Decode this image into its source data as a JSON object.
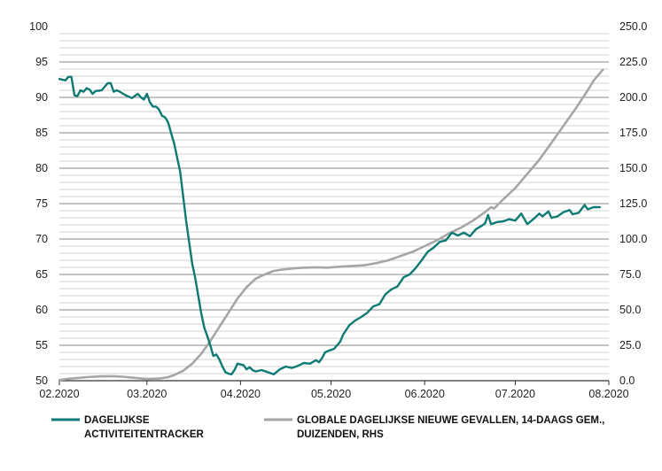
{
  "chart_data": {
    "type": "line",
    "x_ticks": [
      "02.2020",
      "03.2020",
      "04.2020",
      "05.2020",
      "06.2020",
      "07.2020",
      "08.2020"
    ],
    "y_left_ticks": [
      "100",
      "95",
      "90",
      "85",
      "80",
      "75",
      "70",
      "65",
      "60",
      "55",
      "50"
    ],
    "y_right_ticks": [
      "250.0",
      "225.0",
      "200.0",
      "175.0",
      "150.0",
      "125.0",
      "100.0",
      "75.0",
      "50.0",
      "25.0",
      "0.0"
    ],
    "ylim_left": [
      50,
      100
    ],
    "ylim_right": [
      0,
      250
    ],
    "xlim": [
      "2020-02-01",
      "2020-08-01"
    ],
    "grid": "horizontal",
    "legend_position": "bottom",
    "series": [
      {
        "name": "DAGELIJKSE ACTIVITEITENTRACKER",
        "axis": "left",
        "color": "#0d7a73",
        "points": [
          [
            "2020-02-01",
            92.6
          ],
          [
            "2020-02-03",
            92.4
          ],
          [
            "2020-02-04",
            92.9
          ],
          [
            "2020-02-05",
            92.9
          ],
          [
            "2020-02-06",
            90.3
          ],
          [
            "2020-02-07",
            90.2
          ],
          [
            "2020-02-08",
            91.0
          ],
          [
            "2020-02-09",
            90.8
          ],
          [
            "2020-02-10",
            91.3
          ],
          [
            "2020-02-11",
            91.1
          ],
          [
            "2020-02-12",
            90.5
          ],
          [
            "2020-02-13",
            90.9
          ],
          [
            "2020-02-15",
            91.0
          ],
          [
            "2020-02-17",
            92.0
          ],
          [
            "2020-02-18",
            92.0
          ],
          [
            "2020-02-19",
            90.8
          ],
          [
            "2020-02-20",
            91.0
          ],
          [
            "2020-02-21",
            90.8
          ],
          [
            "2020-02-23",
            90.3
          ],
          [
            "2020-02-25",
            89.9
          ],
          [
            "2020-02-26",
            90.2
          ],
          [
            "2020-02-27",
            90.5
          ],
          [
            "2020-02-28",
            90.0
          ],
          [
            "2020-02-29",
            89.7
          ],
          [
            "2020-03-01",
            90.5
          ],
          [
            "2020-03-02",
            89.3
          ],
          [
            "2020-03-03",
            88.7
          ],
          [
            "2020-03-04",
            88.7
          ],
          [
            "2020-03-05",
            88.3
          ],
          [
            "2020-03-06",
            87.4
          ],
          [
            "2020-03-07",
            87.2
          ],
          [
            "2020-03-08",
            86.5
          ],
          [
            "2020-03-09",
            85.0
          ],
          [
            "2020-03-10",
            83.5
          ],
          [
            "2020-03-11",
            81.5
          ],
          [
            "2020-03-12",
            79.5
          ],
          [
            "2020-03-13",
            76.0
          ],
          [
            "2020-03-14",
            72.5
          ],
          [
            "2020-03-15",
            69.5
          ],
          [
            "2020-03-16",
            66.5
          ],
          [
            "2020-03-17",
            64.5
          ],
          [
            "2020-03-18",
            62.0
          ],
          [
            "2020-03-19",
            59.5
          ],
          [
            "2020-03-20",
            57.5
          ],
          [
            "2020-03-21",
            56.3
          ],
          [
            "2020-03-22",
            55.0
          ],
          [
            "2020-03-23",
            53.5
          ],
          [
            "2020-03-24",
            53.7
          ],
          [
            "2020-03-25",
            53.0
          ],
          [
            "2020-03-26",
            52.0
          ],
          [
            "2020-03-27",
            51.2
          ],
          [
            "2020-03-28",
            51.0
          ],
          [
            "2020-03-29",
            50.9
          ],
          [
            "2020-03-30",
            51.5
          ],
          [
            "2020-03-31",
            52.4
          ],
          [
            "2020-04-02",
            52.2
          ],
          [
            "2020-04-03",
            51.6
          ],
          [
            "2020-04-04",
            51.9
          ],
          [
            "2020-04-05",
            51.5
          ],
          [
            "2020-04-06",
            51.3
          ],
          [
            "2020-04-08",
            51.5
          ],
          [
            "2020-04-10",
            51.2
          ],
          [
            "2020-04-12",
            50.9
          ],
          [
            "2020-04-14",
            51.6
          ],
          [
            "2020-04-16",
            52.0
          ],
          [
            "2020-04-18",
            51.8
          ],
          [
            "2020-04-20",
            52.1
          ],
          [
            "2020-04-22",
            52.5
          ],
          [
            "2020-04-24",
            52.4
          ],
          [
            "2020-04-26",
            52.9
          ],
          [
            "2020-04-27",
            52.6
          ],
          [
            "2020-04-28",
            53.2
          ],
          [
            "2020-04-29",
            54.0
          ],
          [
            "2020-04-30",
            54.2
          ],
          [
            "2020-05-02",
            54.5
          ],
          [
            "2020-05-04",
            55.5
          ],
          [
            "2020-05-05",
            56.5
          ],
          [
            "2020-05-07",
            57.8
          ],
          [
            "2020-05-09",
            58.5
          ],
          [
            "2020-05-11",
            59.0
          ],
          [
            "2020-05-13",
            59.6
          ],
          [
            "2020-05-15",
            60.5
          ],
          [
            "2020-05-17",
            60.8
          ],
          [
            "2020-05-19",
            62.2
          ],
          [
            "2020-05-21",
            62.9
          ],
          [
            "2020-05-23",
            63.3
          ],
          [
            "2020-05-25",
            64.6
          ],
          [
            "2020-05-27",
            65.0
          ],
          [
            "2020-05-29",
            65.9
          ],
          [
            "2020-05-31",
            67.0
          ],
          [
            "2020-06-02",
            68.2
          ],
          [
            "2020-06-04",
            68.8
          ],
          [
            "2020-06-06",
            69.6
          ],
          [
            "2020-06-08",
            69.8
          ],
          [
            "2020-06-10",
            70.9
          ],
          [
            "2020-06-12",
            70.5
          ],
          [
            "2020-06-14",
            70.9
          ],
          [
            "2020-06-16",
            70.4
          ],
          [
            "2020-06-18",
            71.4
          ],
          [
            "2020-06-20",
            71.9
          ],
          [
            "2020-06-21",
            72.2
          ],
          [
            "2020-06-22",
            73.4
          ],
          [
            "2020-06-23",
            72.1
          ],
          [
            "2020-06-25",
            72.4
          ],
          [
            "2020-06-27",
            72.5
          ],
          [
            "2020-06-29",
            72.8
          ],
          [
            "2020-07-01",
            72.6
          ],
          [
            "2020-07-03",
            73.6
          ],
          [
            "2020-07-05",
            72.1
          ],
          [
            "2020-07-07",
            72.8
          ],
          [
            "2020-07-09",
            73.6
          ],
          [
            "2020-07-10",
            73.2
          ],
          [
            "2020-07-12",
            73.9
          ],
          [
            "2020-07-13",
            73.0
          ],
          [
            "2020-07-15",
            73.2
          ],
          [
            "2020-07-17",
            73.8
          ],
          [
            "2020-07-19",
            74.1
          ],
          [
            "2020-07-20",
            73.5
          ],
          [
            "2020-07-22",
            73.7
          ],
          [
            "2020-07-24",
            74.8
          ],
          [
            "2020-07-25",
            74.2
          ],
          [
            "2020-07-27",
            74.5
          ],
          [
            "2020-07-29",
            74.5
          ]
        ]
      },
      {
        "name": "GLOBALE DAGELIJKSE NIEUWE GEVALLEN, 14-DAAGS GEM., DUIZENDEN, RHS",
        "axis": "right",
        "color": "#a6a6a6",
        "points": [
          [
            "2020-02-01",
            0.5
          ],
          [
            "2020-02-05",
            1.5
          ],
          [
            "2020-02-10",
            2.5
          ],
          [
            "2020-02-14",
            3.0
          ],
          [
            "2020-02-18",
            3.2
          ],
          [
            "2020-02-22",
            2.8
          ],
          [
            "2020-02-26",
            2.0
          ],
          [
            "2020-03-01",
            1.2
          ],
          [
            "2020-03-05",
            1.5
          ],
          [
            "2020-03-08",
            2.5
          ],
          [
            "2020-03-10",
            4.0
          ],
          [
            "2020-03-13",
            7.0
          ],
          [
            "2020-03-16",
            12.0
          ],
          [
            "2020-03-19",
            19.0
          ],
          [
            "2020-03-22",
            28.0
          ],
          [
            "2020-03-25",
            38.0
          ],
          [
            "2020-03-28",
            48.0
          ],
          [
            "2020-03-31",
            58.0
          ],
          [
            "2020-04-03",
            66.0
          ],
          [
            "2020-04-06",
            72.0
          ],
          [
            "2020-04-09",
            75.0
          ],
          [
            "2020-04-12",
            77.5
          ],
          [
            "2020-04-15",
            78.5
          ],
          [
            "2020-04-18",
            79.2
          ],
          [
            "2020-04-22",
            79.8
          ],
          [
            "2020-04-26",
            80.0
          ],
          [
            "2020-04-30",
            79.8
          ],
          [
            "2020-05-04",
            80.5
          ],
          [
            "2020-05-08",
            81.0
          ],
          [
            "2020-05-12",
            81.5
          ],
          [
            "2020-05-16",
            83.0
          ],
          [
            "2020-05-20",
            85.0
          ],
          [
            "2020-05-24",
            88.0
          ],
          [
            "2020-05-28",
            91.0
          ],
          [
            "2020-06-01",
            95.0
          ],
          [
            "2020-06-05",
            99.0
          ],
          [
            "2020-06-09",
            104.0
          ],
          [
            "2020-06-13",
            108.0
          ],
          [
            "2020-06-17",
            113.0
          ],
          [
            "2020-06-21",
            119.0
          ],
          [
            "2020-06-23",
            122.5
          ],
          [
            "2020-06-24",
            121.5
          ],
          [
            "2020-06-27",
            128.0
          ],
          [
            "2020-07-01",
            136.0
          ],
          [
            "2020-07-05",
            146.0
          ],
          [
            "2020-07-09",
            156.0
          ],
          [
            "2020-07-13",
            168.0
          ],
          [
            "2020-07-17",
            180.0
          ],
          [
            "2020-07-21",
            192.0
          ],
          [
            "2020-07-25",
            205.0
          ],
          [
            "2020-07-27",
            212.0
          ],
          [
            "2020-07-29",
            217.0
          ],
          [
            "2020-07-30",
            219.5
          ]
        ]
      }
    ]
  }
}
